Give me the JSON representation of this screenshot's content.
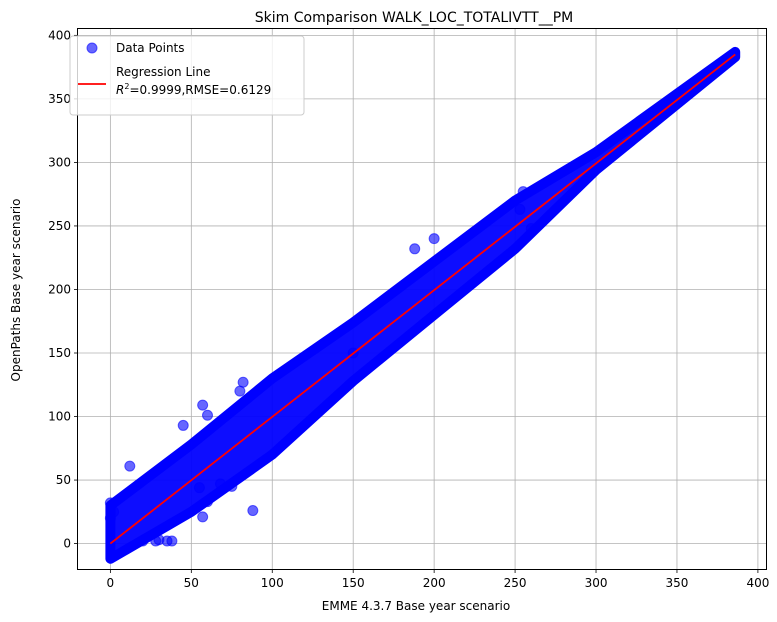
{
  "chart_data": {
    "type": "scatter",
    "title": "Skim Comparison WALK_LOC_TOTALIVTT__PM",
    "xlabel": "EMME 4.3.7 Base year scenario",
    "ylabel": "OpenPaths Base year scenario",
    "xlim": [
      -20,
      405
    ],
    "ylim": [
      -20,
      405
    ],
    "xticks": [
      0,
      50,
      100,
      150,
      200,
      250,
      300,
      350,
      400
    ],
    "yticks": [
      0,
      50,
      100,
      150,
      200,
      250,
      300,
      350,
      400
    ],
    "grid": true,
    "legend_position": "top-left",
    "legend": {
      "points_label": "Data Points",
      "line_label": "Regression Line",
      "r2_prefix": "R",
      "r2_sup": "2",
      "stats_text": "=0.9999,RMSE=0.6129"
    },
    "colors": {
      "points": "#0000ff",
      "line": "#ff0000",
      "grid": "#b0b0b0"
    },
    "band": {
      "points": [
        [
          0,
          0
        ],
        [
          50,
          50
        ],
        [
          100,
          100
        ],
        [
          150,
          150
        ],
        [
          200,
          200
        ],
        [
          250,
          250
        ],
        [
          300,
          300
        ],
        [
          386,
          385
        ]
      ],
      "upper_spread": [
        30,
        28,
        30,
        24,
        22,
        20,
        8,
        2
      ],
      "lower_spread": [
        12,
        25,
        30,
        22,
        20,
        18,
        6,
        2
      ]
    },
    "outliers": [
      [
        0,
        32
      ],
      [
        2,
        25
      ],
      [
        0,
        20
      ],
      [
        12,
        61
      ],
      [
        20,
        2
      ],
      [
        28,
        2
      ],
      [
        35,
        2
      ],
      [
        38,
        2
      ],
      [
        30,
        3
      ],
      [
        45,
        93
      ],
      [
        57,
        109
      ],
      [
        60,
        101
      ],
      [
        80,
        120
      ],
      [
        82,
        127
      ],
      [
        88,
        26
      ],
      [
        57,
        21
      ],
      [
        55,
        44
      ],
      [
        60,
        33
      ],
      [
        68,
        47
      ],
      [
        75,
        45
      ],
      [
        150,
        150
      ],
      [
        255,
        277
      ],
      [
        253,
        263
      ],
      [
        260,
        248
      ],
      [
        188,
        232
      ],
      [
        200,
        240
      ]
    ],
    "regression": {
      "x": [
        0,
        386
      ],
      "y": [
        0,
        385
      ]
    }
  }
}
